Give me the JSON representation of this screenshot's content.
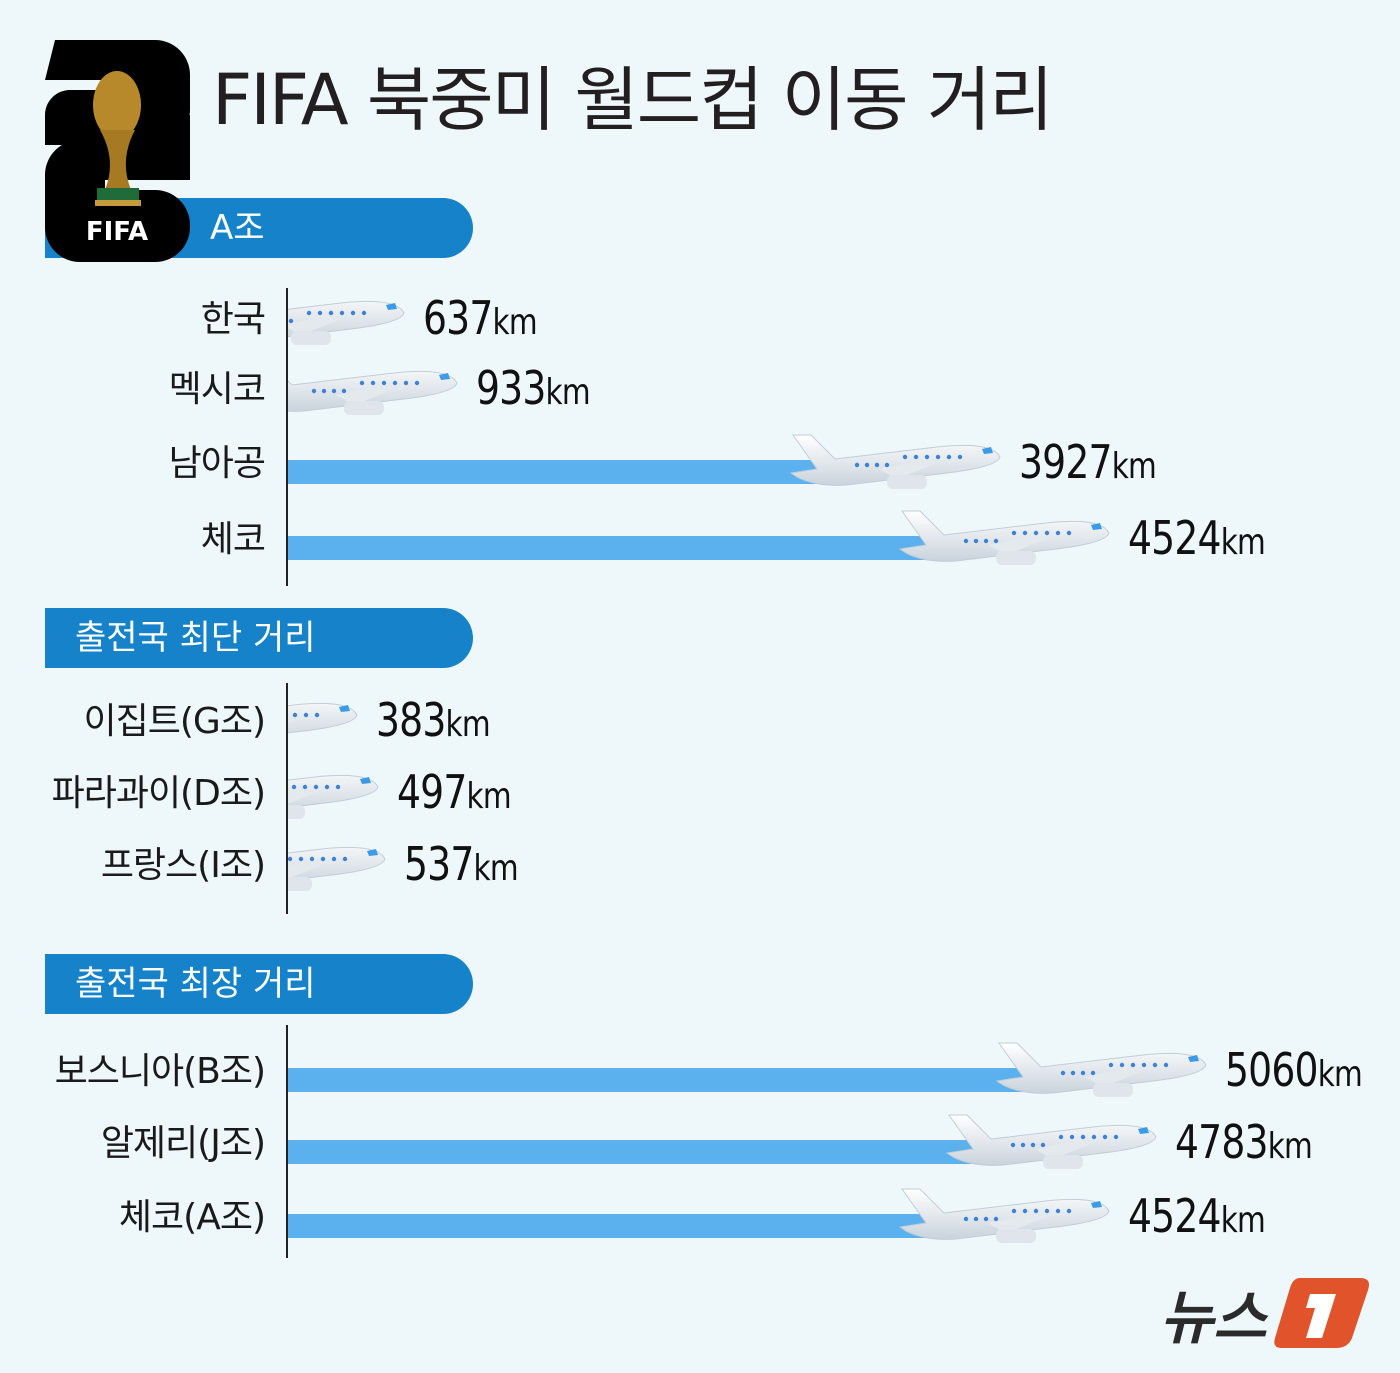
{
  "title": "FIFA 북중미 월드컵 이동 거리",
  "logo": {
    "text": "FIFA",
    "number": "26"
  },
  "publisher": {
    "name": "뉴스",
    "mark": "1",
    "accent": "#e0532b"
  },
  "colors": {
    "header": "#1582c9",
    "bar": "#5ab1ee",
    "background": "#eef7fa"
  },
  "chart_data": {
    "type": "bar",
    "orientation": "horizontal",
    "unit": "km",
    "groups": [
      {
        "title": "A조",
        "categories": [
          "한국",
          "멕시코",
          "남아공",
          "체코"
        ],
        "values": [
          637,
          933,
          3927,
          4524
        ]
      },
      {
        "title": "출전국 최단 거리",
        "categories": [
          "이집트(G조)",
          "파라과이(D조)",
          "프랑스(I조)"
        ],
        "values": [
          383,
          497,
          537
        ]
      },
      {
        "title": "출전국 최장 거리",
        "categories": [
          "보스니아(B조)",
          "알제리(J조)",
          "체코(A조)"
        ],
        "values": [
          5060,
          4783,
          4524
        ]
      }
    ]
  }
}
